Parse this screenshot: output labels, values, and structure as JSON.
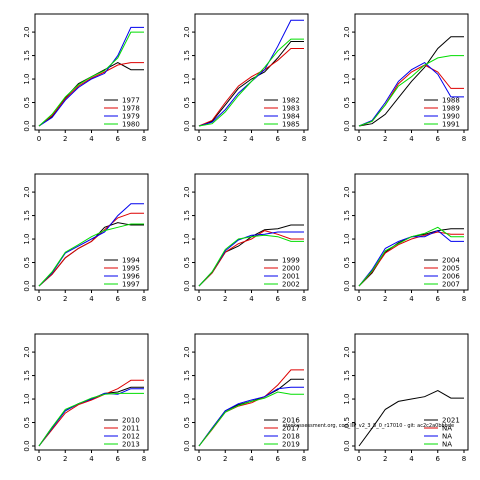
{
  "colors": {
    "black": "#000000",
    "red": "#dd0000",
    "blue": "#0000ee",
    "green": "#00dd00"
  },
  "annotation": "stockassessment.org, cod_IIP_v2_3_8_0_r17010 - git: ac2c2a0bbbde",
  "chart_data": [
    {
      "type": "line",
      "xlim": [
        0,
        8
      ],
      "ylim": [
        0,
        2.3
      ],
      "xticks": [
        "0",
        "2",
        "4",
        "6",
        "8"
      ],
      "yticks": [
        "0.0",
        "0.5",
        "1.0",
        "1.5",
        "2.0"
      ],
      "legend_position": "bottom-right",
      "series": [
        {
          "name": "1977",
          "color": "#000000",
          "x": [
            0,
            1,
            2,
            3,
            4,
            5,
            6,
            7,
            8
          ],
          "y": [
            0.0,
            0.2,
            0.6,
            0.9,
            1.05,
            1.2,
            1.35,
            1.2,
            1.2
          ]
        },
        {
          "name": "1978",
          "color": "#dd0000",
          "x": [
            0,
            1,
            2,
            3,
            4,
            5,
            6,
            7,
            8
          ],
          "y": [
            0.0,
            0.22,
            0.58,
            0.85,
            1.02,
            1.15,
            1.3,
            1.35,
            1.35
          ]
        },
        {
          "name": "1979",
          "color": "#0000ee",
          "x": [
            0,
            1,
            2,
            3,
            4,
            5,
            6,
            7,
            8
          ],
          "y": [
            0.0,
            0.18,
            0.55,
            0.82,
            1.0,
            1.12,
            1.5,
            2.1,
            2.1
          ]
        },
        {
          "name": "1980",
          "color": "#00dd00",
          "x": [
            0,
            1,
            2,
            3,
            4,
            5,
            6,
            7,
            8
          ],
          "y": [
            0.0,
            0.25,
            0.62,
            0.88,
            1.05,
            1.18,
            1.45,
            2.0,
            2.0
          ]
        }
      ]
    },
    {
      "type": "line",
      "xlim": [
        0,
        8
      ],
      "ylim": [
        0,
        2.3
      ],
      "xticks": [
        "0",
        "2",
        "4",
        "6",
        "8"
      ],
      "yticks": [
        "0.0",
        "0.5",
        "1.0",
        "1.5",
        "2.0"
      ],
      "legend_position": "bottom-right",
      "series": [
        {
          "name": "1982",
          "color": "#000000",
          "x": [
            0,
            1,
            2,
            3,
            4,
            5,
            6,
            7,
            8
          ],
          "y": [
            0.0,
            0.1,
            0.45,
            0.8,
            1.0,
            1.15,
            1.45,
            1.8,
            1.8
          ]
        },
        {
          "name": "1983",
          "color": "#dd0000",
          "x": [
            0,
            1,
            2,
            3,
            4,
            5,
            6,
            7,
            8
          ],
          "y": [
            0.0,
            0.12,
            0.5,
            0.85,
            1.05,
            1.2,
            1.4,
            1.65,
            1.65
          ]
        },
        {
          "name": "1984",
          "color": "#0000ee",
          "x": [
            0,
            1,
            2,
            3,
            4,
            5,
            6,
            7,
            8
          ],
          "y": [
            0.0,
            0.08,
            0.35,
            0.7,
            0.95,
            1.2,
            1.7,
            2.25,
            2.25
          ]
        },
        {
          "name": "1985",
          "color": "#00dd00",
          "x": [
            0,
            1,
            2,
            3,
            4,
            5,
            6,
            7,
            8
          ],
          "y": [
            0.0,
            0.05,
            0.3,
            0.65,
            0.95,
            1.25,
            1.6,
            1.85,
            1.85
          ]
        }
      ]
    },
    {
      "type": "line",
      "xlim": [
        0,
        8
      ],
      "ylim": [
        0,
        2.3
      ],
      "xticks": [
        "0",
        "2",
        "4",
        "6",
        "8"
      ],
      "yticks": [
        "0.0",
        "0.5",
        "1.0",
        "1.5",
        "2.0"
      ],
      "legend_position": "bottom-right",
      "series": [
        {
          "name": "1988",
          "color": "#000000",
          "x": [
            0,
            1,
            2,
            3,
            4,
            5,
            6,
            7,
            8
          ],
          "y": [
            0.0,
            0.05,
            0.25,
            0.6,
            0.95,
            1.25,
            1.65,
            1.9,
            1.9
          ]
        },
        {
          "name": "1989",
          "color": "#dd0000",
          "x": [
            0,
            1,
            2,
            3,
            4,
            5,
            6,
            7,
            8
          ],
          "y": [
            0.0,
            0.1,
            0.45,
            0.9,
            1.15,
            1.3,
            1.15,
            0.8,
            0.8
          ]
        },
        {
          "name": "1990",
          "color": "#0000ee",
          "x": [
            0,
            1,
            2,
            3,
            4,
            5,
            6,
            7,
            8
          ],
          "y": [
            0.0,
            0.12,
            0.5,
            0.95,
            1.2,
            1.35,
            1.1,
            0.62,
            0.62
          ]
        },
        {
          "name": "1991",
          "color": "#00dd00",
          "x": [
            0,
            1,
            2,
            3,
            4,
            5,
            6,
            7,
            8
          ],
          "y": [
            0.0,
            0.1,
            0.45,
            0.85,
            1.05,
            1.3,
            1.45,
            1.5,
            1.5
          ]
        }
      ]
    },
    {
      "type": "line",
      "xlim": [
        0,
        8
      ],
      "ylim": [
        0,
        2.3
      ],
      "xticks": [
        "0",
        "2",
        "4",
        "6",
        "8"
      ],
      "yticks": [
        "0.0",
        "0.5",
        "1.0",
        "1.5",
        "2.0"
      ],
      "legend_position": "bottom-right",
      "series": [
        {
          "name": "1994",
          "color": "#000000",
          "x": [
            0,
            1,
            2,
            3,
            4,
            5,
            6,
            7,
            8
          ],
          "y": [
            0.0,
            0.25,
            0.6,
            0.8,
            0.95,
            1.25,
            1.35,
            1.3,
            1.3
          ]
        },
        {
          "name": "1995",
          "color": "#dd0000",
          "x": [
            0,
            1,
            2,
            3,
            4,
            5,
            6,
            7,
            8
          ],
          "y": [
            0.0,
            0.25,
            0.6,
            0.8,
            0.95,
            1.2,
            1.45,
            1.55,
            1.55
          ]
        },
        {
          "name": "1996",
          "color": "#0000ee",
          "x": [
            0,
            1,
            2,
            3,
            4,
            5,
            6,
            7,
            8
          ],
          "y": [
            0.0,
            0.28,
            0.7,
            0.85,
            1.0,
            1.15,
            1.5,
            1.75,
            1.75
          ]
        },
        {
          "name": "1997",
          "color": "#00dd00",
          "x": [
            0,
            1,
            2,
            3,
            4,
            5,
            6,
            7,
            8
          ],
          "y": [
            0.0,
            0.3,
            0.72,
            0.88,
            1.05,
            1.18,
            1.25,
            1.32,
            1.32
          ]
        }
      ]
    },
    {
      "type": "line",
      "xlim": [
        0,
        8
      ],
      "ylim": [
        0,
        2.3
      ],
      "xticks": [
        "0",
        "2",
        "4",
        "6",
        "8"
      ],
      "yticks": [
        "0.0",
        "0.5",
        "1.0",
        "1.5",
        "2.0"
      ],
      "legend_position": "bottom-right",
      "series": [
        {
          "name": "1999",
          "color": "#000000",
          "x": [
            0,
            1,
            2,
            3,
            4,
            5,
            6,
            7,
            8
          ],
          "y": [
            0.0,
            0.28,
            0.72,
            0.85,
            1.05,
            1.2,
            1.22,
            1.3,
            1.3
          ]
        },
        {
          "name": "2000",
          "color": "#dd0000",
          "x": [
            0,
            1,
            2,
            3,
            4,
            5,
            6,
            7,
            8
          ],
          "y": [
            0.0,
            0.28,
            0.72,
            0.9,
            1.0,
            1.18,
            1.1,
            1.0,
            1.0
          ]
        },
        {
          "name": "2001",
          "color": "#0000ee",
          "x": [
            0,
            1,
            2,
            3,
            4,
            5,
            6,
            7,
            8
          ],
          "y": [
            0.0,
            0.3,
            0.75,
            0.98,
            1.08,
            1.1,
            1.15,
            1.15,
            1.15
          ]
        },
        {
          "name": "2002",
          "color": "#00dd00",
          "x": [
            0,
            1,
            2,
            3,
            4,
            5,
            6,
            7,
            8
          ],
          "y": [
            0.0,
            0.3,
            0.78,
            1.0,
            1.05,
            1.08,
            1.05,
            0.95,
            0.95
          ]
        }
      ]
    },
    {
      "type": "line",
      "xlim": [
        0,
        8
      ],
      "ylim": [
        0,
        2.3
      ],
      "xticks": [
        "0",
        "2",
        "4",
        "6",
        "8"
      ],
      "yticks": [
        "0.0",
        "0.5",
        "1.0",
        "1.5",
        "2.0"
      ],
      "legend_position": "bottom-right",
      "series": [
        {
          "name": "2004",
          "color": "#000000",
          "x": [
            0,
            1,
            2,
            3,
            4,
            5,
            6,
            7,
            8
          ],
          "y": [
            0.0,
            0.28,
            0.72,
            0.92,
            1.05,
            1.1,
            1.18,
            1.22,
            1.22
          ]
        },
        {
          "name": "2005",
          "color": "#dd0000",
          "x": [
            0,
            1,
            2,
            3,
            4,
            5,
            6,
            7,
            8
          ],
          "y": [
            0.0,
            0.3,
            0.7,
            0.88,
            1.0,
            1.08,
            1.15,
            1.1,
            1.1
          ]
        },
        {
          "name": "2006",
          "color": "#0000ee",
          "x": [
            0,
            1,
            2,
            3,
            4,
            5,
            6,
            7,
            8
          ],
          "y": [
            0.0,
            0.35,
            0.8,
            0.95,
            1.05,
            1.05,
            1.18,
            0.95,
            0.95
          ]
        },
        {
          "name": "2007",
          "color": "#00dd00",
          "x": [
            0,
            1,
            2,
            3,
            4,
            5,
            6,
            7,
            8
          ],
          "y": [
            0.0,
            0.32,
            0.75,
            0.9,
            1.05,
            1.12,
            1.25,
            1.05,
            1.05
          ]
        }
      ]
    },
    {
      "type": "line",
      "xlim": [
        0,
        8
      ],
      "ylim": [
        0,
        2.3
      ],
      "xticks": [
        "0",
        "2",
        "4",
        "6",
        "8"
      ],
      "yticks": [
        "0.0",
        "0.5",
        "1.0",
        "1.5",
        "2.0"
      ],
      "legend_position": "bottom-right",
      "series": [
        {
          "name": "2010",
          "color": "#000000",
          "x": [
            0,
            1,
            2,
            3,
            4,
            5,
            6,
            7,
            8
          ],
          "y": [
            0.0,
            0.4,
            0.75,
            0.9,
            1.0,
            1.12,
            1.15,
            1.25,
            1.25
          ]
        },
        {
          "name": "2011",
          "color": "#dd0000",
          "x": [
            0,
            1,
            2,
            3,
            4,
            5,
            6,
            7,
            8
          ],
          "y": [
            0.0,
            0.35,
            0.7,
            0.88,
            0.98,
            1.1,
            1.22,
            1.4,
            1.4
          ]
        },
        {
          "name": "2012",
          "color": "#0000ee",
          "x": [
            0,
            1,
            2,
            3,
            4,
            5,
            6,
            7,
            8
          ],
          "y": [
            0.0,
            0.38,
            0.75,
            0.9,
            1.0,
            1.12,
            1.1,
            1.22,
            1.22
          ]
        },
        {
          "name": "2013",
          "color": "#00dd00",
          "x": [
            0,
            1,
            2,
            3,
            4,
            5,
            6,
            7,
            8
          ],
          "y": [
            0.0,
            0.4,
            0.78,
            0.9,
            1.02,
            1.1,
            1.12,
            1.12,
            1.12
          ]
        }
      ]
    },
    {
      "type": "line",
      "xlim": [
        0,
        8
      ],
      "ylim": [
        0,
        2.3
      ],
      "xticks": [
        "0",
        "2",
        "4",
        "6",
        "8"
      ],
      "yticks": [
        "0.0",
        "0.5",
        "1.0",
        "1.5",
        "2.0"
      ],
      "legend_position": "bottom-right",
      "series": [
        {
          "name": "2016",
          "color": "#000000",
          "x": [
            0,
            1,
            2,
            3,
            4,
            5,
            6,
            7,
            8
          ],
          "y": [
            0.0,
            0.38,
            0.75,
            0.88,
            0.95,
            1.05,
            1.2,
            1.42,
            1.42
          ]
        },
        {
          "name": "2017",
          "color": "#dd0000",
          "x": [
            0,
            1,
            2,
            3,
            4,
            5,
            6,
            7,
            8
          ],
          "y": [
            0.0,
            0.35,
            0.72,
            0.85,
            0.92,
            1.05,
            1.3,
            1.62,
            1.62
          ]
        },
        {
          "name": "2018",
          "color": "#0000ee",
          "x": [
            0,
            1,
            2,
            3,
            4,
            5,
            6,
            7,
            8
          ],
          "y": [
            0.0,
            0.38,
            0.75,
            0.9,
            0.98,
            1.05,
            1.22,
            1.25,
            1.25
          ]
        },
        {
          "name": "2019",
          "color": "#00dd00",
          "x": [
            0,
            1,
            2,
            3,
            4,
            5,
            6,
            7,
            8
          ],
          "y": [
            0.0,
            0.36,
            0.72,
            0.86,
            0.95,
            1.02,
            1.15,
            1.1,
            1.1
          ]
        }
      ]
    },
    {
      "type": "line",
      "xlim": [
        0,
        8
      ],
      "ylim": [
        0,
        2.3
      ],
      "xticks": [
        "0",
        "2",
        "4",
        "6",
        "8"
      ],
      "yticks": [
        "0.0",
        "0.5",
        "1.0",
        "1.5",
        "2.0"
      ],
      "legend_position": "bottom-right",
      "series": [
        {
          "name": "2021",
          "color": "#000000",
          "x": [
            0,
            1,
            2,
            3,
            4,
            5,
            6,
            7,
            8
          ],
          "y": [
            0.0,
            0.38,
            0.78,
            0.95,
            1.0,
            1.05,
            1.18,
            1.02,
            1.02
          ]
        },
        {
          "name": "NA",
          "color": "#dd0000",
          "x": [],
          "y": []
        },
        {
          "name": "NA",
          "color": "#0000ee",
          "x": [],
          "y": []
        },
        {
          "name": "NA",
          "color": "#00dd00",
          "x": [],
          "y": []
        }
      ]
    }
  ]
}
